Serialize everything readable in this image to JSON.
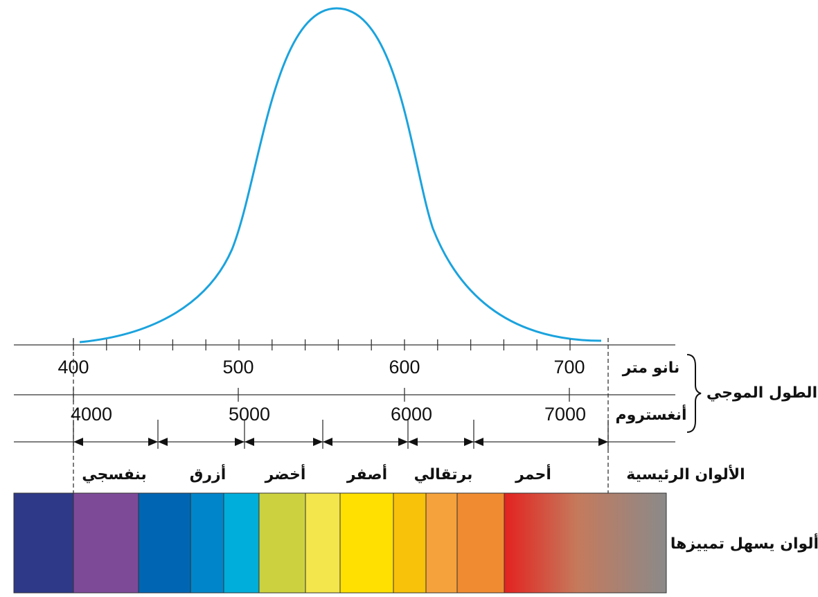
{
  "axis_nm": {
    "unit": "نانو متر",
    "ticks": [
      "400",
      "500",
      "600",
      "700"
    ]
  },
  "axis_angstrom": {
    "unit": "أنغستروم",
    "ticks": [
      "4000",
      "5000",
      "6000",
      "7000"
    ]
  },
  "wavelength_label": "الطول الموجي",
  "main_colors": {
    "label": "الألوان الرئيسية",
    "names": [
      "بنفسجي",
      "أزرق",
      "أخضر",
      "أصفر",
      "برتقالي",
      "أحمر"
    ]
  },
  "distinguishable_colors_label": "ألوان يسهل تمييزها"
}
